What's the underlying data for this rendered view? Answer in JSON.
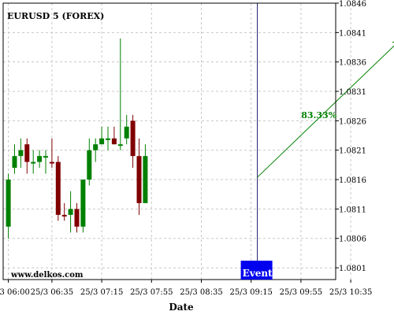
{
  "chart_data": {
    "type": "candlestick",
    "title": "EURUSD 5 (FOREX)",
    "watermark": "www.delkos.com",
    "xlabel": "Date",
    "ylabel": "",
    "ylim": [
      1.0799,
      1.0846
    ],
    "grid": true,
    "y_ticks": [
      "1.0801",
      "1.0806",
      "1.0811",
      "1.0816",
      "1.0821",
      "1.0826",
      "1.0831",
      "1.0836",
      "1.0841",
      "1.0846"
    ],
    "x_ticks": [
      "25/3 06:00",
      "25/3 06:35",
      "25/3 07:15",
      "25/3 07:55",
      "25/3 08:35",
      "25/3 09:15",
      "25/3 09:55",
      "25/3 10:35"
    ],
    "candles": [
      {
        "o": 1.0808,
        "h": 1.0817,
        "l": 1.0806,
        "c": 1.0816,
        "dir": "up"
      },
      {
        "o": 1.0818,
        "h": 1.0822,
        "l": 1.0817,
        "c": 1.082,
        "dir": "up"
      },
      {
        "o": 1.082,
        "h": 1.0823,
        "l": 1.0818,
        "c": 1.0821,
        "dir": "up"
      },
      {
        "o": 1.0822,
        "h": 1.0823,
        "l": 1.0817,
        "c": 1.0819,
        "dir": "down"
      },
      {
        "o": 1.0819,
        "h": 1.0821,
        "l": 1.0817,
        "c": 1.0819,
        "dir": "up"
      },
      {
        "o": 1.0819,
        "h": 1.0821,
        "l": 1.0818,
        "c": 1.082,
        "dir": "up"
      },
      {
        "o": 1.082,
        "h": 1.0821,
        "l": 1.0817,
        "c": 1.082,
        "dir": "up"
      },
      {
        "o": 1.0819,
        "h": 1.0823,
        "l": 1.0818,
        "c": 1.0819,
        "dir": "down"
      },
      {
        "o": 1.0819,
        "h": 1.082,
        "l": 1.0809,
        "c": 1.081,
        "dir": "down"
      },
      {
        "o": 1.081,
        "h": 1.0812,
        "l": 1.0809,
        "c": 1.081,
        "dir": "down"
      },
      {
        "o": 1.081,
        "h": 1.0814,
        "l": 1.0807,
        "c": 1.0811,
        "dir": "up"
      },
      {
        "o": 1.0811,
        "h": 1.0812,
        "l": 1.0807,
        "c": 1.0808,
        "dir": "down"
      },
      {
        "o": 1.0808,
        "h": 1.0816,
        "l": 1.0807,
        "c": 1.0816,
        "dir": "up"
      },
      {
        "o": 1.0816,
        "h": 1.0823,
        "l": 1.0815,
        "c": 1.0821,
        "dir": "up"
      },
      {
        "o": 1.0821,
        "h": 1.0823,
        "l": 1.0819,
        "c": 1.0822,
        "dir": "up"
      },
      {
        "o": 1.0822,
        "h": 1.0825,
        "l": 1.0822,
        "c": 1.0823,
        "dir": "up"
      },
      {
        "o": 1.0823,
        "h": 1.0825,
        "l": 1.0821,
        "c": 1.0823,
        "dir": "up"
      },
      {
        "o": 1.0823,
        "h": 1.0825,
        "l": 1.0822,
        "c": 1.0822,
        "dir": "down"
      },
      {
        "o": 1.0822,
        "h": 1.084,
        "l": 1.0821,
        "c": 1.0822,
        "dir": "up"
      },
      {
        "o": 1.0823,
        "h": 1.0827,
        "l": 1.0822,
        "c": 1.0825,
        "dir": "up"
      },
      {
        "o": 1.0826,
        "h": 1.0827,
        "l": 1.0818,
        "c": 1.082,
        "dir": "down"
      },
      {
        "o": 1.082,
        "h": 1.0823,
        "l": 1.081,
        "c": 1.0812,
        "dir": "down"
      },
      {
        "o": 1.0812,
        "h": 1.0822,
        "l": 1.0812,
        "c": 1.082,
        "dir": "up"
      }
    ],
    "colors": {
      "up": "#008000",
      "down": "#800000",
      "grid": "#c8c8c8",
      "event": "#0000cc",
      "arrow": "#008000"
    },
    "event": {
      "label": "Event",
      "slot": 40
    },
    "projection": {
      "label": "83.33%",
      "from_slot": 40,
      "from_price": 1.08164,
      "to_slot": 63,
      "to_price": 1.08398
    }
  }
}
